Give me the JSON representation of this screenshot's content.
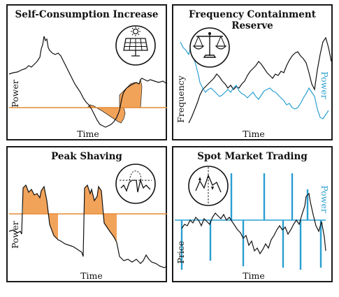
{
  "colors": {
    "line": "#111111",
    "orange": "#f2a35a",
    "orange_line": "#e58a33",
    "blue": "#2a9fd0"
  },
  "panels": [
    {
      "title": "Self-Consumption Increase",
      "xlabel": "Time",
      "ylabel": "Power",
      "icon": "solar-panel-icon"
    },
    {
      "title": "Frequency Containment Reserve",
      "xlabel": "Time",
      "ylabel": "Frequency",
      "ylabel_right": "Power",
      "icon": "balance-scale-icon"
    },
    {
      "title": "Peak Shaving",
      "xlabel": "Time",
      "ylabel": "Power",
      "icon": "peak-chart-icon"
    },
    {
      "title": "Spot Market Trading",
      "xlabel": "Time",
      "ylabel": "Price",
      "ylabel_right": "Power",
      "icon": "market-chart-icon"
    }
  ]
}
